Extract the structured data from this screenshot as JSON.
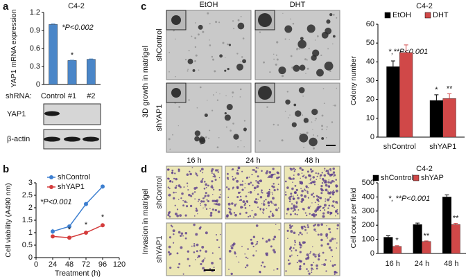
{
  "figure": {
    "panel_labels": [
      "a",
      "b",
      "c",
      "d"
    ],
    "blot": {
      "rows": [
        "YAP1",
        "β-actin"
      ]
    },
    "colony_images": {
      "columns": [
        "EtOH",
        "DHT"
      ],
      "rows": [
        "shControl",
        "shYAP1"
      ],
      "side_label": "3D growth in matrigel"
    },
    "invasion_images": {
      "columns": [
        "16 h",
        "24 h",
        "48 h"
      ],
      "rows": [
        "shControl",
        "shYAP1"
      ],
      "side_label": "Invasion in matrigel"
    }
  },
  "chart_data": [
    {
      "type": "bar",
      "title": "C4-2",
      "y_label": "YAP1 mRNA expression",
      "category_prefix": "shRNA:",
      "categories": [
        "Control",
        "#1",
        "#2"
      ],
      "values": [
        1.0,
        0.4,
        0.42
      ],
      "errors": [
        0.01,
        0.005,
        0.005
      ],
      "stars": [
        null,
        "*",
        null
      ],
      "color": "#4a86c8",
      "ylim": [
        0,
        1.2
      ],
      "yticks": [
        0,
        0.3,
        0.6,
        0.9,
        1.2
      ],
      "annotation": "*P<0.002"
    },
    {
      "type": "line",
      "y_label": "Cell viability (A490 nm)",
      "x_label": "Treatment (h)",
      "x": [
        24,
        48,
        72,
        96
      ],
      "xlim": [
        0,
        120
      ],
      "xticks": [
        0,
        24,
        48,
        72,
        96,
        120
      ],
      "ylim": [
        0,
        3
      ],
      "yticks": [
        0,
        0.5,
        1,
        1.5,
        2,
        2.5,
        3
      ],
      "series": [
        {
          "name": "shControl",
          "color": "#3d7fd0",
          "values": [
            1.05,
            1.25,
            2.15,
            2.85
          ],
          "errors": [
            0.1,
            0.05,
            0.05,
            0.08
          ]
        },
        {
          "name": "shYAP1",
          "color": "#d43c3c",
          "values": [
            0.85,
            0.8,
            1.0,
            1.3
          ],
          "errors": [
            0.05,
            0.04,
            0.04,
            0.05
          ],
          "stars": [
            null,
            "*",
            "*",
            "*"
          ]
        }
      ],
      "annotation": "*P<0.001"
    },
    {
      "type": "bar",
      "title": "C4-2",
      "y_label": "Colony number",
      "categories": [
        "shControl",
        "shYAP1"
      ],
      "series": [
        {
          "name": "EtOH",
          "color": "#000000",
          "values": [
            37.5,
            19.5
          ],
          "errors": [
            3,
            3
          ],
          "stars": [
            null,
            "*"
          ]
        },
        {
          "name": "DHT",
          "color": "#d04848",
          "values": [
            45,
            20.5
          ],
          "errors": [
            4,
            2.5
          ],
          "stars": [
            null,
            "**"
          ]
        }
      ],
      "ylim": [
        0,
        60
      ],
      "yticks": [
        0,
        10,
        20,
        30,
        40,
        50,
        60
      ],
      "annotation": "*,**P<0.001"
    },
    {
      "type": "bar",
      "title": "C4-2",
      "y_label": "Cell count per field",
      "categories": [
        "16 h",
        "24 h",
        "48 h"
      ],
      "series": [
        {
          "name": "shControl",
          "color": "#000000",
          "values": [
            115,
            205,
            400
          ],
          "errors": [
            10,
            10,
            15
          ],
          "stars": [
            null,
            null,
            null
          ]
        },
        {
          "name": "shYAP",
          "color": "#d04848",
          "values": [
            50,
            85,
            205
          ],
          "errors": [
            5,
            4,
            8
          ],
          "stars": [
            "*",
            "**",
            "**"
          ]
        }
      ],
      "ylim": [
        0,
        500
      ],
      "yticks": [
        0,
        100,
        200,
        300,
        400,
        500
      ],
      "annotation": "*, **P<0.001"
    }
  ]
}
